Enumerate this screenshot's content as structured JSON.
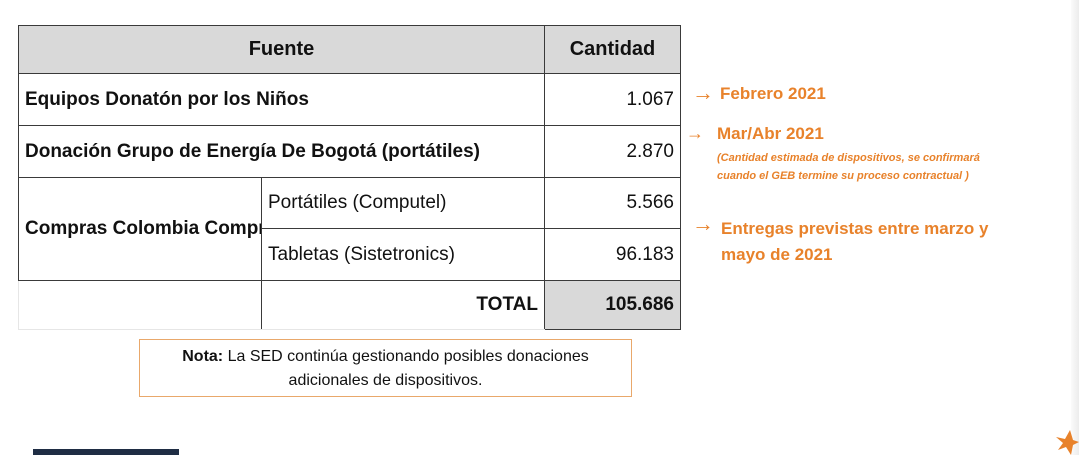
{
  "table": {
    "header": {
      "source": "Fuente",
      "quantity": "Cantidad"
    },
    "rows": [
      {
        "source": "Equipos Donatón por los Niños",
        "quantity": "1.067"
      },
      {
        "source": "Donación Grupo de Energía De Bogotá (portátiles)",
        "quantity": "2.870"
      }
    ],
    "group": {
      "label": "Compras Colombia Compra Eficiente",
      "items": [
        {
          "source": "Portátiles (Computel)",
          "quantity": "5.566"
        },
        {
          "source": "Tabletas (Sistetronics)",
          "quantity": "96.183"
        }
      ]
    },
    "total_label": "TOTAL",
    "total_value": "105.686"
  },
  "notes": {
    "note1": "Febrero 2021",
    "note2": "Mar/Abr 2021",
    "note2_detail_line1": "(Cantidad estimada de dispositivos, se confirmará",
    "note2_detail_line2": "cuando el GEB termine su proceso contractual )",
    "note3_line1": "Entregas previstas entre marzo y",
    "note3_line2": "mayo de 2021"
  },
  "nota": {
    "label": "Nota:",
    "line1": "La SED continúa gestionando posibles donaciones",
    "line2": "adicionales de dispositivos."
  },
  "colors": {
    "accent": "#e8822b",
    "header_bg": "#d9d9d9",
    "border": "#3a3a3a"
  }
}
